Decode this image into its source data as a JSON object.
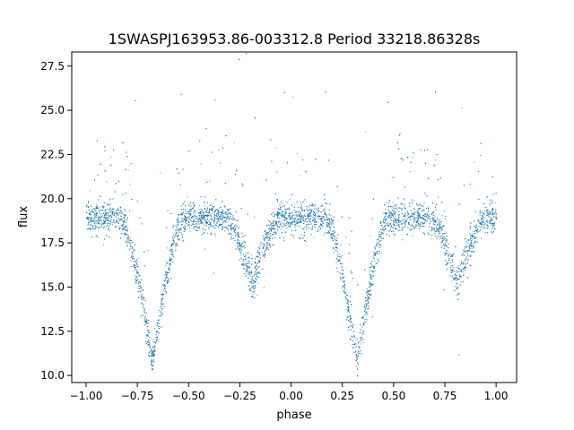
{
  "chart_data": {
    "type": "scatter",
    "title": "1SWASPJ163953.86-003312.8 Period 33218.86328s",
    "xlabel": "phase",
    "ylabel": "flux",
    "xlim": [
      -1.07,
      1.1
    ],
    "ylim": [
      9.6,
      28.3
    ],
    "xticks": [
      -1.0,
      -0.75,
      -0.5,
      -0.25,
      0.0,
      0.25,
      0.5,
      0.75,
      1.0
    ],
    "xtick_labels": [
      "−1.00",
      "−0.75",
      "−0.50",
      "−0.25",
      "0.00",
      "0.25",
      "0.50",
      "0.75",
      "1.00"
    ],
    "yticks": [
      10.0,
      12.5,
      15.0,
      17.5,
      20.0,
      22.5,
      25.0,
      27.5
    ],
    "ytick_labels": [
      "10.0",
      "12.5",
      "15.0",
      "17.5",
      "20.0",
      "22.5",
      "25.0",
      "27.5"
    ],
    "grid": false,
    "marker_color": "#1f77b4",
    "baseline_flux": 18.9,
    "eclipses": [
      {
        "phase": -0.68,
        "min_flux": 10.8,
        "half_width": 0.15
      },
      {
        "phase": -0.19,
        "min_flux": 15.2,
        "half_width": 0.13
      },
      {
        "phase": 0.32,
        "min_flux": 10.8,
        "half_width": 0.15
      },
      {
        "phase": 0.81,
        "min_flux": 15.2,
        "half_width": 0.13
      }
    ],
    "phase_range": [
      -1.0,
      1.0
    ]
  }
}
